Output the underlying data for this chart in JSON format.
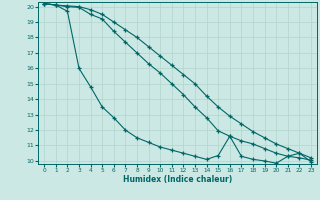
{
  "xlabel": "Humidex (Indice chaleur)",
  "ylabel": "",
  "bg_color": "#cce8e4",
  "grid_color": "#b0d4cc",
  "line_color": "#006666",
  "xlim": [
    -0.5,
    23.5
  ],
  "ylim": [
    9.8,
    20.3
  ],
  "xticks": [
    0,
    1,
    2,
    3,
    4,
    5,
    6,
    7,
    8,
    9,
    10,
    11,
    12,
    13,
    14,
    15,
    16,
    17,
    18,
    19,
    20,
    21,
    22,
    23
  ],
  "yticks": [
    10,
    11,
    12,
    13,
    14,
    15,
    16,
    17,
    18,
    19,
    20
  ],
  "line1_x": [
    0,
    1,
    2,
    3,
    4,
    5,
    6,
    7,
    8,
    9,
    10,
    11,
    12,
    13,
    14,
    15,
    16,
    17,
    18,
    19,
    20,
    21,
    22,
    23
  ],
  "line1_y": [
    20.2,
    20.1,
    19.7,
    16.0,
    14.8,
    13.5,
    12.8,
    12.0,
    11.5,
    11.2,
    10.9,
    10.7,
    10.5,
    10.3,
    10.1,
    10.35,
    11.6,
    10.3,
    10.1,
    10.0,
    9.85,
    10.3,
    10.5,
    9.95
  ],
  "line2_x": [
    0,
    1,
    2,
    3,
    4,
    5,
    6,
    7,
    8,
    9,
    10,
    11,
    12,
    13,
    14,
    15,
    16,
    17,
    18,
    19,
    20,
    21,
    22,
    23
  ],
  "line2_y": [
    20.2,
    20.1,
    20.0,
    19.95,
    19.5,
    19.2,
    18.4,
    17.7,
    17.0,
    16.3,
    15.7,
    15.0,
    14.3,
    13.5,
    12.8,
    11.95,
    11.6,
    11.3,
    11.1,
    10.8,
    10.5,
    10.3,
    10.2,
    10.05
  ],
  "line3_x": [
    0,
    1,
    2,
    3,
    4,
    5,
    6,
    7,
    8,
    9,
    10,
    11,
    12,
    13,
    14,
    15,
    16,
    17,
    18,
    19,
    20,
    21,
    22,
    23
  ],
  "line3_y": [
    20.2,
    20.1,
    20.05,
    20.0,
    19.8,
    19.5,
    19.0,
    18.5,
    18.0,
    17.4,
    16.8,
    16.2,
    15.6,
    15.0,
    14.2,
    13.5,
    12.9,
    12.4,
    11.9,
    11.5,
    11.1,
    10.8,
    10.5,
    10.2
  ]
}
